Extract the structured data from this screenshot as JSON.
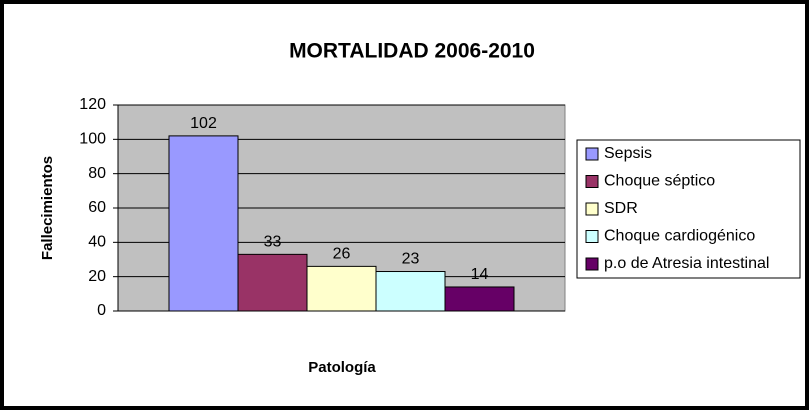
{
  "chart_data": {
    "type": "bar",
    "title": "MORTALIDAD  2006-2010",
    "y_label": "Fallecimientos",
    "x_label": "Patología",
    "categories": [
      null
    ],
    "series": [
      {
        "name": "Sepsis",
        "color": "#9999ff",
        "values": [
          102
        ]
      },
      {
        "name": "Choque séptico",
        "color": "#993366",
        "values": [
          33
        ]
      },
      {
        "name": "SDR",
        "color": "#ffffcc",
        "values": [
          26
        ]
      },
      {
        "name": "Choque cardiogénico",
        "color": "#ccffff",
        "values": [
          23
        ]
      },
      {
        "name": "p.o de Atresia intestinal",
        "color": "#660066",
        "values": [
          14
        ]
      }
    ],
    "ylim": [
      0,
      120
    ],
    "yticks": [
      0,
      20,
      40,
      60,
      80,
      100,
      120
    ],
    "grid": true,
    "legend": "right"
  }
}
